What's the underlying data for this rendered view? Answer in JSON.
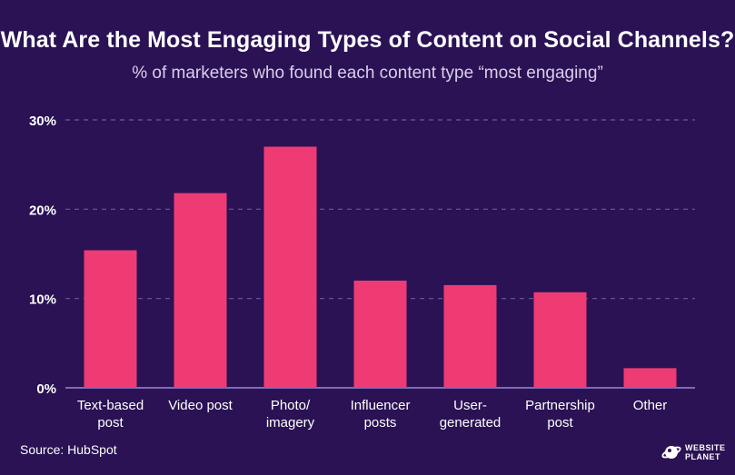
{
  "chart_data": {
    "type": "bar",
    "title": "What Are the Most Engaging Types of Content on Social Channels?",
    "subtitle": "% of marketers who found each content type “most engaging”",
    "categories": [
      [
        "Text-based",
        "post"
      ],
      [
        "Video post"
      ],
      [
        "Photo/",
        "imagery"
      ],
      [
        "Influencer",
        "posts"
      ],
      [
        "User-",
        "generated"
      ],
      [
        "Partnership",
        "post"
      ],
      [
        "Other"
      ]
    ],
    "values": [
      15.4,
      21.8,
      27,
      12,
      11.5,
      10.7,
      2.2
    ],
    "ylim": [
      0,
      30
    ],
    "yticks": [
      0,
      10,
      20,
      30
    ],
    "ytick_labels": [
      "0%",
      "10%",
      "20%",
      "30%"
    ],
    "grid": true,
    "colors": {
      "background": "#2a1254",
      "bar": "#ef3b73",
      "grid": "#6a58a0",
      "axis": "#7e6ab8",
      "text": "#ffffff"
    }
  },
  "footer": {
    "source": "Source: HubSpot",
    "logo_icon": "planet-icon",
    "logo_line1": "WEBSITE",
    "logo_line2": "PLANET"
  }
}
